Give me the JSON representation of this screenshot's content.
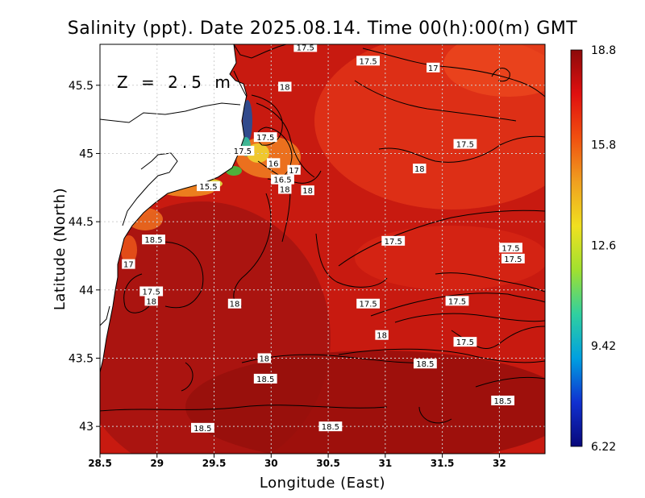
{
  "chart_data": {
    "type": "heatmap",
    "title": "Salinity (ppt). Date 2025.08.14. Time 00(h):00(m) GMT",
    "xlabel": "Longitude (East)",
    "ylabel": "Latitude (North)",
    "depth_label": "Z = 2.5 m",
    "xlim": [
      28.5,
      32.4
    ],
    "ylim": [
      42.8,
      45.8
    ],
    "x_ticks": [
      28.5,
      29,
      29.5,
      30,
      30.5,
      31,
      31.5,
      32
    ],
    "x_tick_labels": [
      "28.5",
      "29",
      "29.5",
      "30",
      "30.5",
      "31",
      "31.5",
      "32"
    ],
    "y_ticks": [
      43,
      43.5,
      44,
      44.5,
      45,
      45.5
    ],
    "y_tick_labels": [
      "43",
      "43.5",
      "44",
      "44.5",
      "45",
      "45.5"
    ],
    "grid": true,
    "colorbar": {
      "min": 6.22,
      "max": 18.8,
      "tick_values": [
        18.8,
        15.8,
        12.6,
        9.42,
        6.22
      ],
      "tick_labels": [
        "18.8",
        "15.8",
        "12.6",
        "9.42",
        "6.22"
      ],
      "colors": [
        "#08087a",
        "#1030d0",
        "#00a0e0",
        "#30d0a0",
        "#a0e030",
        "#f0e020",
        "#f0a020",
        "#f05010",
        "#e01010",
        "#8c0a0a"
      ]
    },
    "contour_labels": [
      {
        "text": "17.5",
        "lon": 30.3,
        "lat": 45.78
      },
      {
        "text": "17.5",
        "lon": 30.85,
        "lat": 45.68
      },
      {
        "text": "17",
        "lon": 31.42,
        "lat": 45.63
      },
      {
        "text": "18",
        "lon": 30.12,
        "lat": 45.49
      },
      {
        "text": "17.5",
        "lon": 29.95,
        "lat": 45.12
      },
      {
        "text": "17.5",
        "lon": 29.75,
        "lat": 45.02
      },
      {
        "text": "16",
        "lon": 30.02,
        "lat": 44.93
      },
      {
        "text": "17",
        "lon": 30.2,
        "lat": 44.88
      },
      {
        "text": "16.5",
        "lon": 30.1,
        "lat": 44.81
      },
      {
        "text": "18",
        "lon": 30.12,
        "lat": 44.74
      },
      {
        "text": "18",
        "lon": 30.32,
        "lat": 44.73
      },
      {
        "text": "15.5",
        "lon": 29.45,
        "lat": 44.76
      },
      {
        "text": "18",
        "lon": 31.3,
        "lat": 44.89
      },
      {
        "text": "17.5",
        "lon": 31.7,
        "lat": 45.07
      },
      {
        "text": "18.5",
        "lon": 28.97,
        "lat": 44.37
      },
      {
        "text": "17.5",
        "lon": 31.07,
        "lat": 44.36
      },
      {
        "text": "17.5",
        "lon": 32.1,
        "lat": 44.31
      },
      {
        "text": "17.5",
        "lon": 32.12,
        "lat": 44.23
      },
      {
        "text": "17",
        "lon": 28.75,
        "lat": 44.19
      },
      {
        "text": "17.5",
        "lon": 28.95,
        "lat": 43.99
      },
      {
        "text": "18",
        "lon": 28.95,
        "lat": 43.92
      },
      {
        "text": "18",
        "lon": 29.68,
        "lat": 43.9
      },
      {
        "text": "17.5",
        "lon": 30.85,
        "lat": 43.9
      },
      {
        "text": "17.5",
        "lon": 31.63,
        "lat": 43.92
      },
      {
        "text": "18",
        "lon": 30.97,
        "lat": 43.67
      },
      {
        "text": "17.5",
        "lon": 31.7,
        "lat": 43.62
      },
      {
        "text": "18",
        "lon": 29.94,
        "lat": 43.5
      },
      {
        "text": "18.5",
        "lon": 31.35,
        "lat": 43.46
      },
      {
        "text": "18.5",
        "lon": 29.95,
        "lat": 43.35
      },
      {
        "text": "18.5",
        "lon": 32.03,
        "lat": 43.19
      },
      {
        "text": "18.5",
        "lon": 29.4,
        "lat": 42.99
      },
      {
        "text": "18.5",
        "lon": 30.52,
        "lat": 43.0
      }
    ]
  }
}
